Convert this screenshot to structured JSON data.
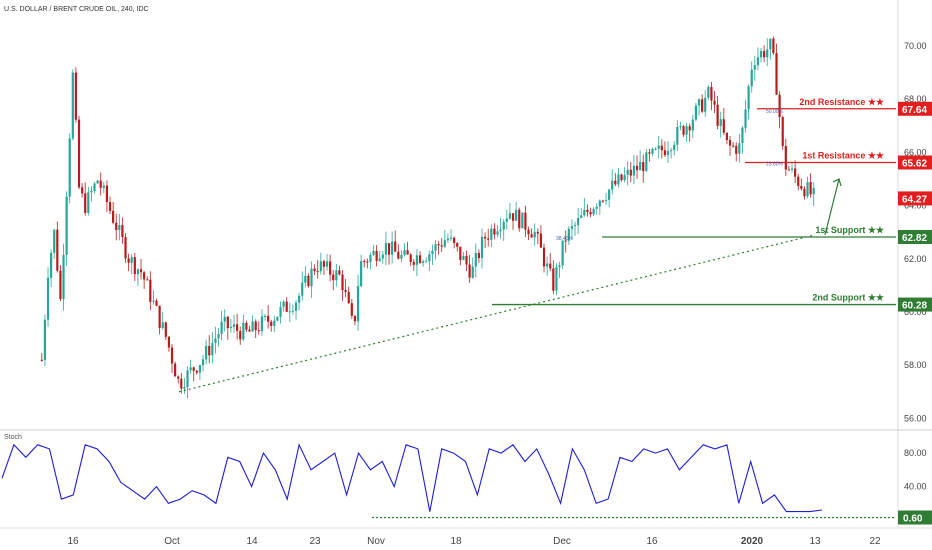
{
  "header": {
    "title": "U.S. DOLLAR / BRENT CRUDE OIL, 240, IDC"
  },
  "stoch_panel": {
    "title": "Stoch"
  },
  "colors": {
    "up_candle": "#26a69a",
    "down_candle": "#b71c1c",
    "resistance": "#e21f1f",
    "support": "#2e7d32",
    "stoch_line": "#1d1dd6",
    "trendline": "#2e7d32",
    "last_price": "#e21f1f"
  },
  "chart_data": [
    {
      "type": "candlestick",
      "title": "U.S. DOLLAR / BRENT CRUDE OIL, 240, IDC",
      "y_axis": {
        "ticks": [
          56.0,
          58.0,
          60.0,
          62.0,
          64.0,
          66.0,
          68.0,
          70.0
        ],
        "tick_labels": [
          "56.00",
          "58.00",
          "60.00",
          "62.00",
          "64.00",
          "66.00",
          "68.00",
          "70.00"
        ]
      },
      "x_axis": {
        "tick_labels": [
          "16",
          "Oct",
          "14",
          "23",
          "Nov",
          "18",
          "Dec",
          "16",
          "2020",
          "13",
          "22"
        ]
      },
      "price_path": [
        {
          "x": "Sep 11",
          "y": 58.2
        },
        {
          "x": "Sep 12",
          "y": 61.6
        },
        {
          "x": "Sep 13",
          "y": 63.0
        },
        {
          "x": "Sep 14",
          "y": 60.4
        },
        {
          "x": "Sep 16",
          "y": 69.0
        },
        {
          "x": "Sep 17",
          "y": 64.5
        },
        {
          "x": "Sep 18",
          "y": 64.0
        },
        {
          "x": "Sep 20",
          "y": 65.0
        },
        {
          "x": "Sep 23",
          "y": 63.2
        },
        {
          "x": "Sep 25",
          "y": 62.0
        },
        {
          "x": "Sep 27",
          "y": 61.5
        },
        {
          "x": "Oct 1",
          "y": 59.0
        },
        {
          "x": "Oct 3",
          "y": 57.3
        },
        {
          "x": "Oct 7",
          "y": 58.3
        },
        {
          "x": "Oct 10",
          "y": 59.5
        },
        {
          "x": "Oct 14",
          "y": 59.2
        },
        {
          "x": "Oct 18",
          "y": 59.8
        },
        {
          "x": "Oct 22",
          "y": 60.5
        },
        {
          "x": "Oct 25",
          "y": 61.8
        },
        {
          "x": "Oct 29",
          "y": 61.3
        },
        {
          "x": "Oct 31",
          "y": 59.3
        },
        {
          "x": "Nov 1",
          "y": 61.8
        },
        {
          "x": "Nov 5",
          "y": 62.5
        },
        {
          "x": "Nov 8",
          "y": 62.0
        },
        {
          "x": "Nov 12",
          "y": 62.2
        },
        {
          "x": "Nov 15",
          "y": 62.8
        },
        {
          "x": "Nov 19",
          "y": 61.5
        },
        {
          "x": "Nov 21",
          "y": 62.8
        },
        {
          "x": "Nov 25",
          "y": 63.8
        },
        {
          "x": "Nov 29",
          "y": 63.0
        },
        {
          "x": "Dec 2",
          "y": 61.0
        },
        {
          "x": "Dec 4",
          "y": 62.8
        },
        {
          "x": "Dec 9",
          "y": 64.2
        },
        {
          "x": "Dec 12",
          "y": 64.8
        },
        {
          "x": "Dec 16",
          "y": 65.5
        },
        {
          "x": "Dec 20",
          "y": 66.2
        },
        {
          "x": "Dec 24",
          "y": 67.2
        },
        {
          "x": "Dec 27",
          "y": 68.2
        },
        {
          "x": "Dec 30",
          "y": 66.2
        },
        {
          "x": "Jan 1",
          "y": 66.2
        },
        {
          "x": "Jan 3",
          "y": 69.5
        },
        {
          "x": "Jan 6",
          "y": 70.0
        },
        {
          "x": "Jan 7",
          "y": 68.2
        },
        {
          "x": "Jan 8",
          "y": 65.6
        },
        {
          "x": "Jan 10",
          "y": 65.0
        },
        {
          "x": "Jan 13",
          "y": 64.27
        }
      ],
      "levels": [
        {
          "name": "2nd Resistance",
          "value": 67.64,
          "label": "2nd Resistance",
          "tag": "67.64",
          "kind": "resistance"
        },
        {
          "name": "1st Resistance",
          "value": 65.62,
          "label": "1st Resistance",
          "tag": "65.62",
          "kind": "resistance"
        },
        {
          "name": "1st Support",
          "value": 62.82,
          "label": "1st Support",
          "tag": "62.82",
          "kind": "support"
        },
        {
          "name": "2nd Support",
          "value": 60.28,
          "label": "2nd Support",
          "tag": "60.28",
          "kind": "support"
        }
      ],
      "star_rating": "★★",
      "last_price": {
        "value": 64.27,
        "tag": "64.27"
      },
      "fibonacci_labels": [
        "50.00%",
        "23.60%",
        "38.40%"
      ],
      "trendline": {
        "from": {
          "x": "Oct 3",
          "y": 57.0
        },
        "to": {
          "x": "Jan 13",
          "y": 62.9
        }
      }
    },
    {
      "type": "line",
      "title": "Stoch",
      "y_axis": {
        "ticks": [
          40.0,
          80.0
        ],
        "tick_labels": [
          "40.00",
          "80.00"
        ]
      },
      "level": {
        "value": 0.6,
        "tag": "0.60"
      },
      "series": [
        {
          "values": [
            50,
            90,
            75,
            90,
            85,
            25,
            30,
            90,
            85,
            70,
            45,
            35,
            25,
            40,
            20,
            25,
            35,
            30,
            20,
            75,
            70,
            40,
            80,
            60,
            25,
            90,
            60,
            70,
            80,
            30,
            80,
            60,
            70,
            40,
            90,
            85,
            10,
            85,
            80,
            70,
            30,
            85,
            80,
            90,
            70,
            85,
            55,
            20,
            85,
            60,
            20,
            25,
            75,
            70,
            85,
            80,
            85,
            60,
            75,
            90,
            85,
            90,
            20,
            70,
            20,
            30,
            10,
            10,
            10,
            12
          ]
        }
      ]
    }
  ]
}
